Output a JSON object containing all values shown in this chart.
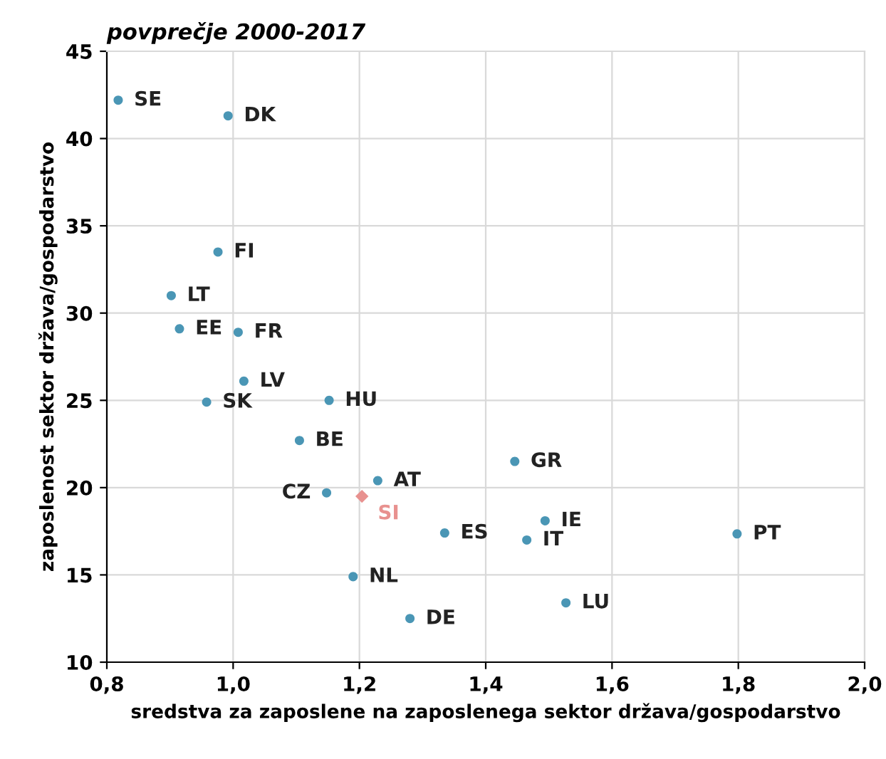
{
  "chart_data": {
    "type": "scatter",
    "title": "povprečje 2000-2017",
    "xlabel": "sredstva za zaposlene na zaposlenega sektor država/gospodarstvo",
    "ylabel": "zaposlenost sektor država/gospodarstvo",
    "series": [
      {
        "color": "#4a96b5",
        "marker": "circle",
        "x": [
          0.818,
          0.992,
          0.976,
          0.902,
          0.915,
          1.008,
          1.017,
          1.152,
          0.958,
          1.105,
          1.229,
          1.148,
          1.446,
          1.494,
          1.335,
          1.465,
          1.798,
          1.19,
          1.28,
          1.527
        ],
        "values": [
          42.2,
          41.3,
          33.5,
          31.0,
          29.1,
          28.9,
          26.1,
          25.0,
          24.9,
          22.7,
          20.4,
          19.7,
          21.5,
          18.1,
          17.4,
          17.0,
          17.35,
          14.9,
          12.5,
          13.4
        ],
        "value_labels": [
          "SE",
          "DK",
          "FI",
          "LT",
          "EE",
          "FR",
          "LV",
          "HU",
          "SK",
          "BE",
          "AT",
          "CZ",
          "GR",
          "IE",
          "ES",
          "IT",
          "PT",
          "NL",
          "DE",
          "LU"
        ]
      },
      {
        "color": "#e8918f",
        "marker": "diamond",
        "x": [
          1.204
        ],
        "values": [
          19.5
        ],
        "value_labels": [
          "SI"
        ]
      }
    ],
    "xlim": [
      0.8,
      2.0
    ],
    "ylim": [
      10,
      45
    ],
    "xticks": [
      {
        "value": 0.8,
        "label": "0,8"
      },
      {
        "value": 1.0,
        "label": "1,0"
      },
      {
        "value": 1.2,
        "label": "1,2"
      },
      {
        "value": 1.4,
        "label": "1,4"
      },
      {
        "value": 1.6,
        "label": "1,6"
      },
      {
        "value": 1.8,
        "label": "1,8"
      },
      {
        "value": 2.0,
        "label": "2,0"
      }
    ],
    "yticks": [
      10,
      15,
      20,
      25,
      30,
      35,
      40,
      45
    ],
    "grid": true
  }
}
